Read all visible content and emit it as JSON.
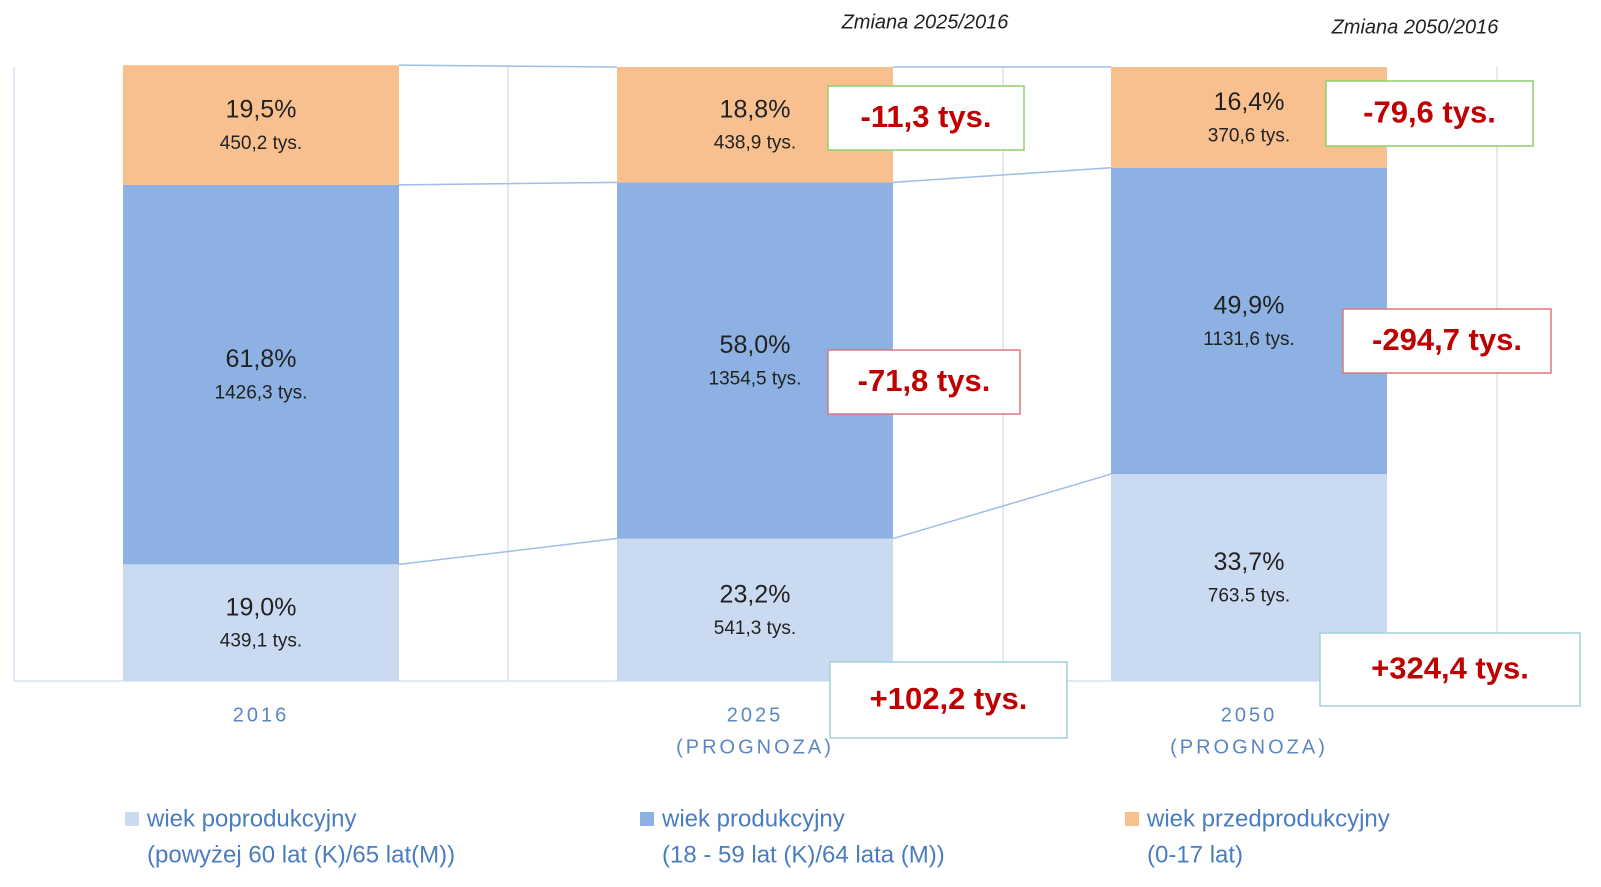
{
  "chart_data": {
    "type": "stacked_bar",
    "categories": [
      [
        "2016"
      ],
      [
        "2025",
        "(PROGNOZA)"
      ],
      [
        "2050",
        "(PROGNOZA)"
      ]
    ],
    "change_headers": [
      null,
      "Zmiana 2025/2016",
      "Zmiana 2050/2016"
    ],
    "ylim": [
      0,
      100
    ],
    "legend": "bottom",
    "series": [
      {
        "name": "wiek poprodukcyjny",
        "description": "(powyżej 60 lat (K)/65 lat(M))",
        "color": "#c9daf1",
        "values": [
          19.0,
          23.2,
          33.7
        ],
        "value_labels": [
          "19,0%",
          "23,2%",
          "33,7%"
        ],
        "counts": [
          439.1,
          541.3,
          763.5
        ],
        "count_labels": [
          "439,1 tys.",
          "541,3 tys.",
          "763.5 tys."
        ],
        "changes": [
          null,
          102.2,
          324.4
        ],
        "change_labels": [
          null,
          "+102,2 tys.",
          "+324,4 tys."
        ],
        "change_border": "#9fd4d8"
      },
      {
        "name": "wiek produkcyjny",
        "description": "(18 - 59 lat (K)/64 lata (M))",
        "color": "#8db1e2",
        "values": [
          61.8,
          58.0,
          49.9
        ],
        "value_labels": [
          "61,8%",
          "58,0%",
          "49,9%"
        ],
        "counts": [
          1426.3,
          1354.5,
          1131.6
        ],
        "count_labels": [
          "1426,3 tys.",
          "1354,5 tys.",
          "1131,6 tys."
        ],
        "changes": [
          null,
          -71.8,
          -294.7
        ],
        "change_labels": [
          null,
          "-71,8 tys.",
          "-294,7 tys."
        ],
        "change_border": "#d9797b"
      },
      {
        "name": "wiek przedprodukcyjny",
        "description": "(0-17 lat)",
        "color": "#f8bf8f",
        "values": [
          19.5,
          18.8,
          16.4
        ],
        "value_labels": [
          "19,5%",
          "18,8%",
          "16,4%"
        ],
        "counts": [
          450.2,
          438.9,
          370.6
        ],
        "count_labels": [
          "450,2 tys.",
          "438,9 tys.",
          "370,6 tys."
        ],
        "changes": [
          null,
          -11.3,
          -79.6
        ],
        "change_labels": [
          null,
          "-11,3 tys.",
          "-79,6 tys."
        ],
        "change_border": "#8fcf6b"
      }
    ]
  }
}
